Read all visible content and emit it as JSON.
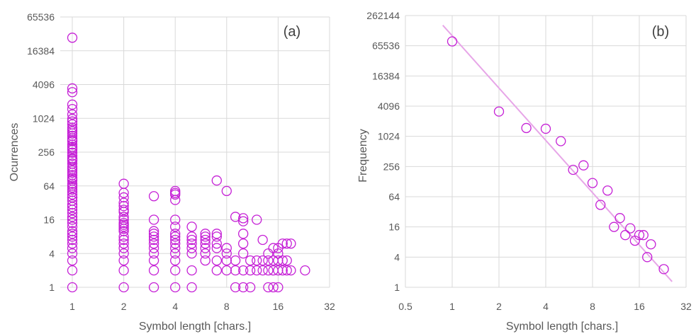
{
  "colors": {
    "marker": "#c51fd6",
    "trendline": "#e7a6e8",
    "grid": "#d9d9d9",
    "text": "#595959"
  },
  "chart_data": [
    {
      "type": "scatter",
      "panel_label": "(a)",
      "xlabel": "Symbol length [chars.]",
      "ylabel": "Ocurrences",
      "x_scale": "log2",
      "y_scale": "log2",
      "xlim": [
        0.85,
        32
      ],
      "ylim": [
        1,
        65536
      ],
      "x_ticks": [
        "1",
        "2",
        "4",
        "8",
        "16",
        "32"
      ],
      "y_ticks": [
        "1",
        "4",
        "16",
        "64",
        "256",
        "1024",
        "4096",
        "16384",
        "65536"
      ],
      "grid": true,
      "legend": "none",
      "points": {
        "x": [
          1,
          1,
          1,
          1,
          1,
          1,
          1,
          1,
          1,
          1,
          1,
          1,
          1,
          1,
          1,
          1,
          1,
          1,
          1,
          1,
          1,
          1,
          1,
          1,
          1,
          1,
          1,
          1,
          1,
          1,
          1,
          1,
          1,
          1,
          1,
          1,
          1,
          1,
          1,
          1,
          1,
          1,
          1,
          1,
          1,
          1,
          1,
          1,
          1,
          1,
          1,
          1,
          1,
          1,
          1,
          1,
          1,
          1,
          1,
          1,
          1,
          1,
          2,
          2,
          2,
          2,
          2,
          2,
          2,
          2,
          2,
          2,
          2,
          2,
          2,
          2,
          2,
          2,
          2,
          2,
          2,
          2,
          2,
          2,
          3,
          3,
          3,
          3,
          3,
          3,
          3,
          3,
          3,
          3,
          3,
          3,
          4,
          4,
          4,
          4,
          4,
          4,
          4,
          4,
          4,
          4,
          4,
          4,
          4,
          4,
          4,
          5,
          5,
          5,
          5,
          5,
          5,
          5,
          5,
          6,
          6,
          6,
          6,
          6,
          6,
          6,
          7,
          7,
          7,
          7,
          7,
          7,
          7,
          8,
          8,
          8,
          8,
          8,
          9,
          9,
          9,
          9,
          10,
          10,
          10,
          10,
          10,
          10,
          10,
          11,
          11,
          11,
          12,
          12,
          12,
          13,
          13,
          13,
          14,
          14,
          14,
          14,
          15,
          15,
          15,
          15,
          16,
          16,
          16,
          16,
          16,
          17,
          17,
          17,
          18,
          18,
          18,
          19,
          19,
          23
        ],
        "y": [
          28000,
          3500,
          3000,
          1800,
          1500,
          1200,
          1000,
          900,
          800,
          700,
          600,
          550,
          500,
          450,
          400,
          350,
          300,
          280,
          250,
          220,
          200,
          180,
          160,
          140,
          120,
          110,
          100,
          90,
          80,
          70,
          60,
          55,
          50,
          45,
          40,
          35,
          30,
          27,
          24,
          21,
          18,
          16,
          14,
          12,
          10,
          9,
          8,
          7,
          6,
          5,
          4,
          3,
          2,
          1,
          650,
          420,
          320,
          190,
          130,
          85,
          65,
          40,
          70,
          40,
          32,
          28,
          24,
          22,
          18,
          16,
          14,
          13,
          12,
          11,
          10,
          8,
          7,
          6,
          5,
          4,
          3,
          2,
          1,
          48,
          42,
          16,
          10,
          9,
          8,
          7,
          6,
          5,
          4,
          3,
          2,
          1,
          52,
          48,
          45,
          36,
          16,
          9,
          8,
          7,
          6,
          5,
          4,
          3,
          2,
          1,
          12,
          12,
          8,
          7,
          6,
          5,
          4,
          2,
          1,
          9,
          8,
          7,
          6,
          5,
          4,
          3,
          80,
          9,
          8,
          6,
          5,
          3,
          2,
          52,
          5,
          4,
          3,
          2,
          18,
          3,
          2,
          1,
          17,
          15,
          9,
          6,
          4,
          2,
          1,
          3,
          2,
          1,
          16,
          3,
          2,
          7,
          3,
          2,
          4,
          3,
          2,
          1,
          5,
          3,
          2,
          1,
          4,
          3,
          2,
          5,
          1,
          2,
          3,
          6,
          2,
          3,
          6,
          2,
          6,
          2
        ]
      }
    },
    {
      "type": "scatter",
      "panel_label": "(b)",
      "xlabel": "Symbol length [chars.]",
      "ylabel": "Frequency",
      "x_scale": "log2",
      "y_scale": "log2",
      "xlim": [
        0.5,
        32
      ],
      "ylim": [
        1,
        262144
      ],
      "x_ticks": [
        "0.5",
        "1",
        "2",
        "4",
        "8",
        "16",
        "32"
      ],
      "y_ticks": [
        "1",
        "4",
        "16",
        "64",
        "256",
        "1024",
        "4096",
        "16384",
        "65536",
        "262144"
      ],
      "grid": true,
      "legend": "none",
      "trendline": {
        "x": [
          0.87,
          26
        ],
        "y": [
          168000,
          1.3
        ]
      },
      "points": {
        "x": [
          1,
          2,
          3,
          4,
          5,
          6,
          7,
          8,
          9,
          10,
          11,
          12,
          13,
          14,
          15,
          16,
          17,
          18,
          19,
          23
        ],
        "y": [
          80000,
          3200,
          1500,
          1450,
          820,
          220,
          270,
          120,
          44,
          85,
          16,
          24,
          11,
          15,
          8.5,
          11,
          11,
          4,
          7.2,
          2.3
        ]
      }
    }
  ]
}
